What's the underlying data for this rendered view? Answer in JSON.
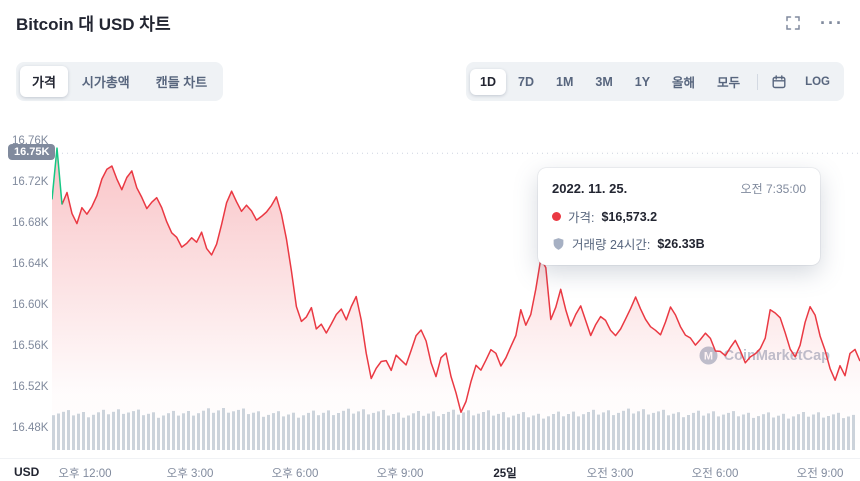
{
  "header": {
    "title": "Bitcoin 대 USD 차트",
    "more_glyph": "···"
  },
  "icons": [
    "fullscreen-icon",
    "more-icon",
    "calendar-icon",
    "price-dot-icon",
    "volume-shield-icon",
    "watermark-logo-icon"
  ],
  "toolbar": {
    "tabs": [
      {
        "id": "price",
        "label": "가격"
      },
      {
        "id": "marketcap",
        "label": "시가총액"
      },
      {
        "id": "candle",
        "label": "캔들 차트"
      }
    ],
    "active_tab": 0,
    "ranges": [
      {
        "id": "1d",
        "label": "1D"
      },
      {
        "id": "7d",
        "label": "7D"
      },
      {
        "id": "1m",
        "label": "1M"
      },
      {
        "id": "3m",
        "label": "3M"
      },
      {
        "id": "1y",
        "label": "1Y"
      },
      {
        "id": "ytd",
        "label": "올해"
      },
      {
        "id": "all",
        "label": "모두"
      }
    ],
    "active_range": 0,
    "log_label": "LOG"
  },
  "tooltip": {
    "date": "2022. 11. 25.",
    "time": "오전 7:35:00",
    "rows": [
      {
        "label": "가격:",
        "value": "$16,573.2"
      },
      {
        "label": "거래량 24시간:",
        "value": "$26.33B"
      }
    ]
  },
  "watermark": "CoinMarketCap",
  "xaxis": {
    "currency": "USD",
    "labels": [
      "오후 12:00",
      "오후 3:00",
      "오후 6:00",
      "오후 9:00",
      "25일",
      "오전 3:00",
      "오전 6:00",
      "오전 9:00"
    ],
    "strong_index": 4
  },
  "chart_data": {
    "type": "line",
    "title": "Bitcoin 대 USD 차트",
    "range": "1D",
    "y_max": 16.76,
    "y_ticks": [
      16.76,
      16.72,
      16.68,
      16.64,
      16.6,
      16.56,
      16.52,
      16.48
    ],
    "y_tick_labels": [
      "16.76K",
      "16.72K",
      "16.68K",
      "16.64K",
      "16.60K",
      "16.56K",
      "16.52K",
      "16.48K"
    ],
    "ylim": [
      16.47,
      16.77
    ],
    "current_price": 16.75,
    "current_price_label": "16.75K",
    "x_tick_labels": [
      "오후 12:00",
      "오후 3:00",
      "오후 6:00",
      "오후 9:00",
      "25일",
      "오전 3:00",
      "오전 6:00",
      "오전 9:00"
    ],
    "hover_point": {
      "date": "2022. 11. 25.",
      "time": "오전 7:35:00",
      "price_usd": 16573.2,
      "volume_24h_usd": "26.33B"
    },
    "green_segment_end_index": 2,
    "series": [
      {
        "name": "가격 (K USD)",
        "color": "#ea3943",
        "values": [
          16.705,
          16.755,
          16.7,
          16.71,
          16.69,
          16.68,
          16.695,
          16.69,
          16.7,
          16.71,
          16.725,
          16.735,
          16.74,
          16.725,
          16.715,
          16.725,
          16.73,
          16.715,
          16.705,
          16.695,
          16.7,
          16.705,
          16.695,
          16.685,
          16.675,
          16.67,
          16.66,
          16.665,
          16.67,
          16.665,
          16.67,
          16.655,
          16.65,
          16.66,
          16.68,
          16.7,
          16.71,
          16.7,
          16.695,
          16.7,
          16.695,
          16.685,
          16.69,
          16.695,
          16.7,
          16.705,
          16.69,
          16.665,
          16.635,
          16.6,
          16.585,
          16.59,
          16.6,
          16.58,
          16.585,
          16.575,
          16.585,
          16.595,
          16.6,
          16.59,
          16.6,
          16.61,
          16.585,
          16.555,
          16.53,
          16.54,
          16.545,
          16.55,
          16.54,
          16.555,
          16.55,
          16.545,
          16.56,
          16.575,
          16.58,
          16.565,
          16.545,
          16.53,
          16.55,
          16.555,
          16.53,
          16.515,
          16.5,
          16.51,
          16.53,
          16.545,
          16.54,
          16.55,
          16.56,
          16.555,
          16.54,
          16.55,
          16.56,
          16.57,
          16.595,
          16.58,
          16.59,
          16.62,
          16.65,
          16.64,
          16.59,
          16.6,
          16.62,
          16.6,
          16.58,
          16.59,
          16.6,
          16.585,
          16.57,
          16.58,
          16.59,
          16.585,
          16.58,
          16.575,
          16.58,
          16.59,
          16.6,
          16.61,
          16.6,
          16.585,
          16.58,
          16.575,
          16.57,
          16.585,
          16.6,
          16.59,
          16.58,
          16.575,
          16.57,
          16.565,
          16.57,
          16.575,
          16.57,
          16.56,
          16.555,
          16.55,
          16.56,
          16.565,
          16.555,
          16.545,
          16.55,
          16.555,
          16.56,
          16.57,
          16.6,
          16.595,
          16.59,
          16.575,
          16.56,
          16.55,
          16.56,
          16.585,
          16.6,
          16.59,
          16.57,
          16.555,
          16.54,
          16.53,
          16.545,
          16.535,
          16.555,
          16.56,
          16.55
        ]
      }
    ],
    "volume_profile": [
      0.8,
      0.72,
      0.85,
      0.7,
      0.78,
      0.9,
      0.74,
      0.7,
      0.8,
      0.84,
      0.7,
      0.76,
      0.8,
      0.72,
      0.66,
      0.75,
      0.8,
      0.84,
      0.72,
      0.76,
      0.7,
      0.66,
      0.72,
      0.62
    ],
    "colors": {
      "line": "#ea3943",
      "up": "#16c784",
      "fill_top": "rgba(234,57,67,0.30)",
      "volume": "#ccd3db",
      "current_price_line": "#cdd4e0"
    },
    "legend": "none",
    "grid": "off"
  }
}
